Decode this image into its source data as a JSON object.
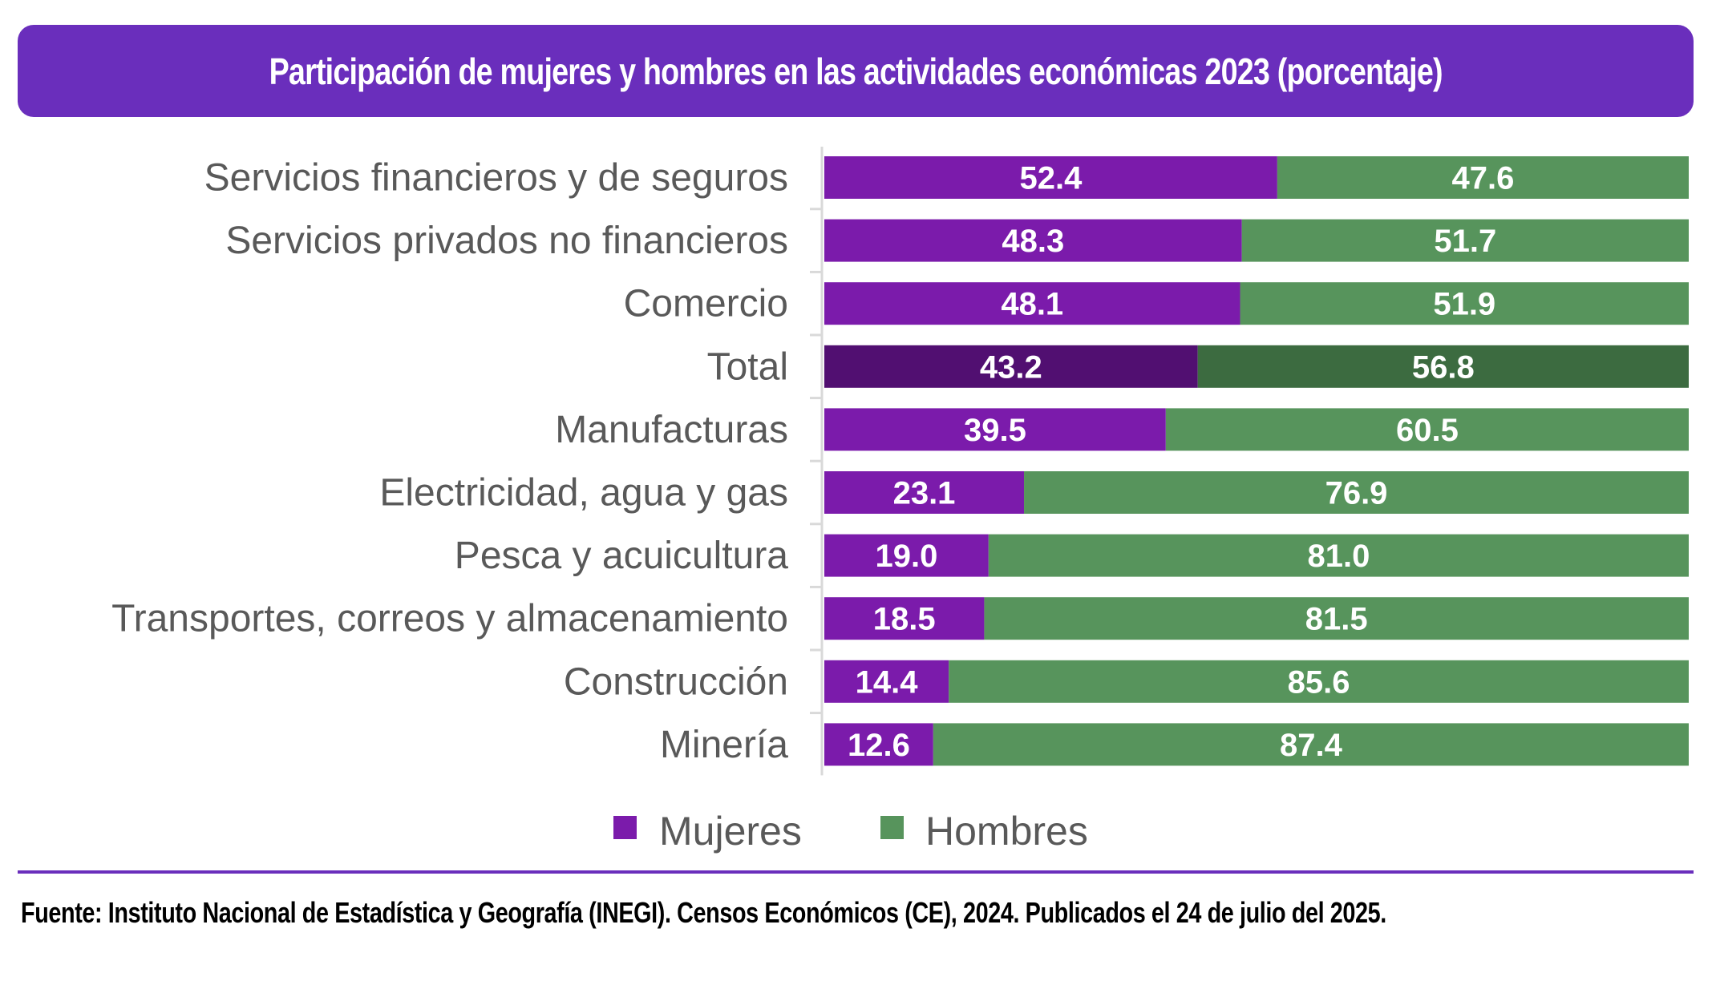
{
  "header": {
    "title": "Participación de mujeres y hombres en las actividades económicas 2023 (porcentaje)"
  },
  "colors": {
    "banner": "#6A2EBC",
    "mujeres": "#7B1BAB",
    "hombres": "#57945C",
    "mujeres_total": "#510F71",
    "hombres_total": "#3C6B40",
    "label_text": "#595959",
    "axis": "#D9D9D9"
  },
  "chart_data": {
    "type": "bar",
    "orientation": "horizontal",
    "stacked": "100%",
    "title": "Participación de mujeres y hombres en las actividades económicas 2023 (porcentaje)",
    "xlabel": "",
    "ylabel": "",
    "xlim": [
      0,
      100
    ],
    "grid": false,
    "legend_position": "bottom",
    "categories": [
      "Servicios financieros y de seguros",
      "Servicios privados no financieros",
      "Comercio",
      "Total",
      "Manufacturas",
      "Electricidad, agua y gas",
      "Pesca y acuicultura",
      "Transportes, correos y almacenamiento",
      "Construcción",
      "Minería"
    ],
    "highlighted_category": "Total",
    "series": [
      {
        "name": "Mujeres",
        "values": [
          52.4,
          48.3,
          48.1,
          43.2,
          39.5,
          23.1,
          19.0,
          18.5,
          14.4,
          12.6
        ],
        "labels": [
          "52.4",
          "48.3",
          "48.1",
          "43.2",
          "39.5",
          "23.1",
          "19.0",
          "18.5",
          "14.4",
          "12.6"
        ]
      },
      {
        "name": "Hombres",
        "values": [
          47.6,
          51.7,
          51.9,
          56.8,
          60.5,
          76.9,
          81.0,
          81.5,
          85.6,
          87.4
        ],
        "labels": [
          "47.6",
          "51.7",
          "51.9",
          "56.8",
          "60.5",
          "76.9",
          "81.0",
          "81.5",
          "85.6",
          "87.4"
        ]
      }
    ]
  },
  "legend": {
    "items": [
      {
        "label": "Mujeres",
        "icon": "square-swatch"
      },
      {
        "label": "Hombres",
        "icon": "square-swatch"
      }
    ]
  },
  "footer": {
    "source": "Fuente: Instituto Nacional de Estadística y Geografía (INEGI). Censos Económicos (CE), 2024. Publicados el 24 de julio del 2025."
  }
}
